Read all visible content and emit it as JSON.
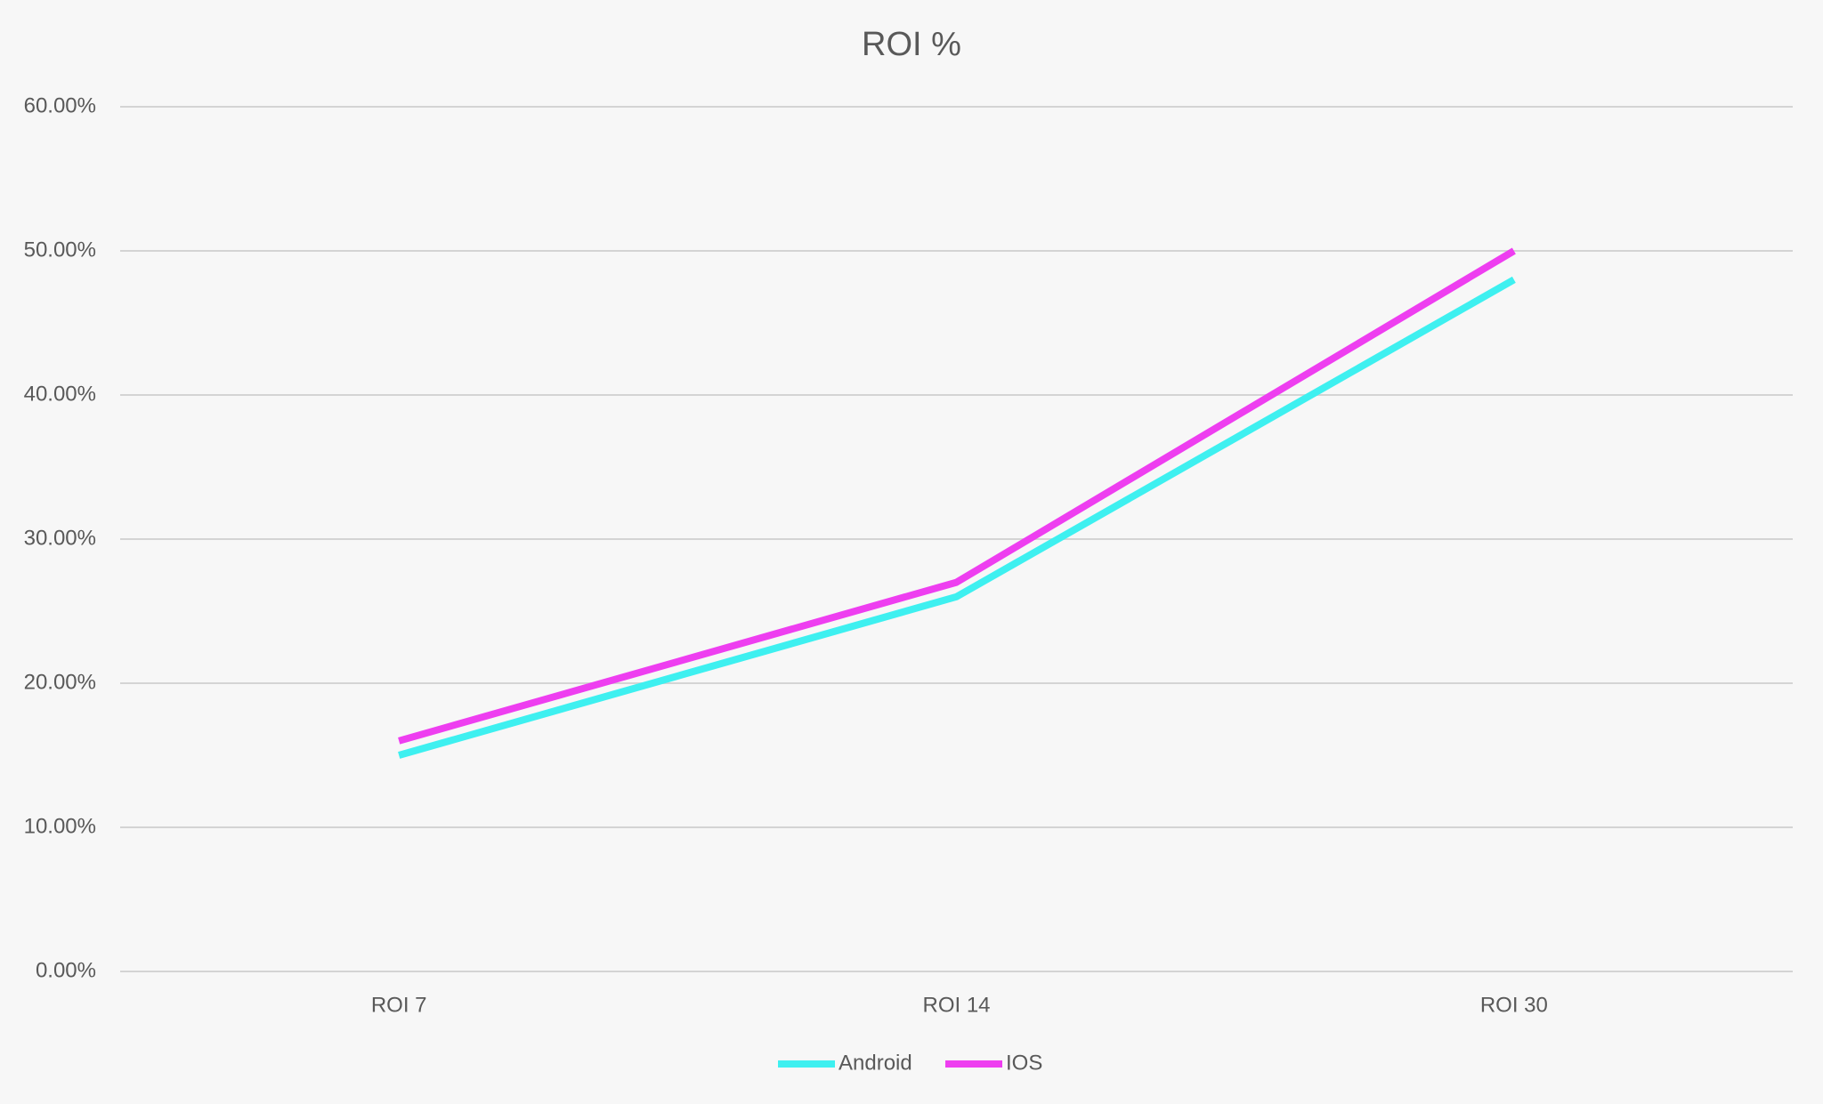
{
  "chart_data": {
    "type": "line",
    "title": "ROI %",
    "categories": [
      "ROI 7",
      "ROI 14",
      "ROI 30"
    ],
    "series": [
      {
        "name": "Android",
        "color": "#3ef0f0",
        "values": [
          15,
          26,
          48
        ]
      },
      {
        "name": "IOS",
        "color": "#ee3ef0",
        "values": [
          16,
          27,
          50
        ]
      }
    ],
    "ylim": [
      0,
      60
    ],
    "yticks": [
      {
        "value": 0,
        "label": "0.00%"
      },
      {
        "value": 10,
        "label": "10.00%"
      },
      {
        "value": 20,
        "label": "20.00%"
      },
      {
        "value": 30,
        "label": "30.00%"
      },
      {
        "value": 40,
        "label": "40.00%"
      },
      {
        "value": 50,
        "label": "50.00%"
      },
      {
        "value": 60,
        "label": "60.00%"
      }
    ],
    "grid": true,
    "legend": "bottom"
  }
}
